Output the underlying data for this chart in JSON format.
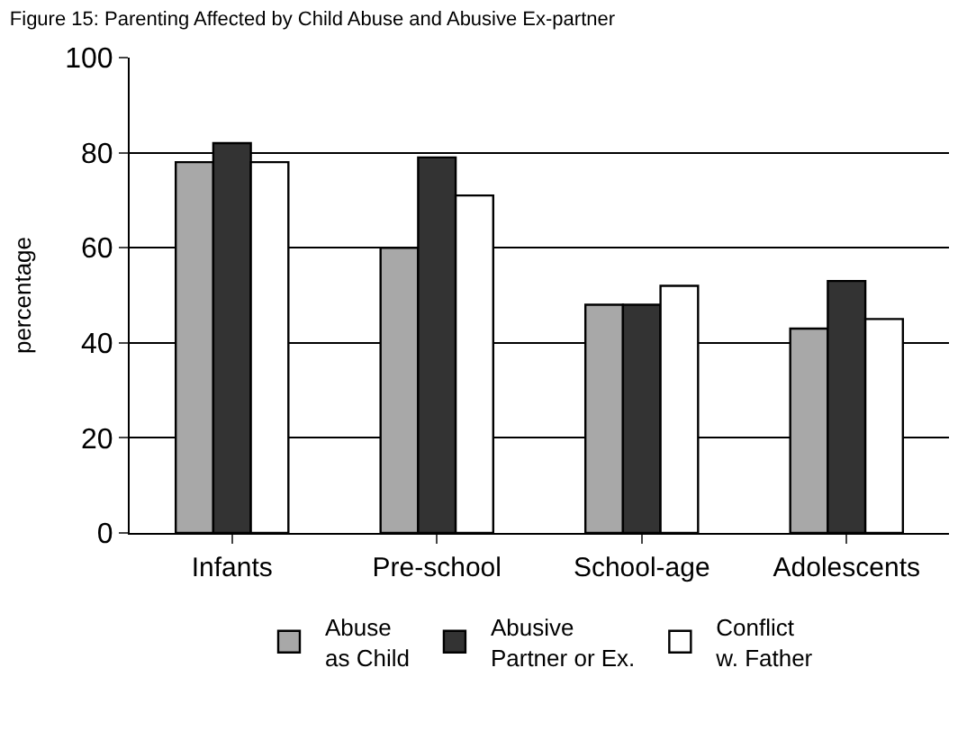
{
  "chart_data": {
    "type": "bar",
    "title": "Figure 15: Parenting Affected by Child Abuse and Abusive Ex-partner",
    "ylabel": "percentage",
    "categories": [
      "Infants",
      "Pre-school",
      "School-age",
      "Adolescents"
    ],
    "series": [
      {
        "name": "Abuse\nas Child",
        "color": "#a8a8a8",
        "values": [
          78,
          60,
          48,
          43
        ]
      },
      {
        "name": "Abusive\nPartner or Ex.",
        "color": "#333333",
        "values": [
          82,
          79,
          48,
          53
        ]
      },
      {
        "name": "Conflict\nw. Father",
        "color": "#ffffff",
        "values": [
          78,
          71,
          52,
          45
        ]
      }
    ],
    "ylim": [
      0,
      100
    ],
    "yticks": [
      0,
      20,
      40,
      60,
      80,
      100
    ],
    "grid": "y",
    "legend": "bottom"
  }
}
